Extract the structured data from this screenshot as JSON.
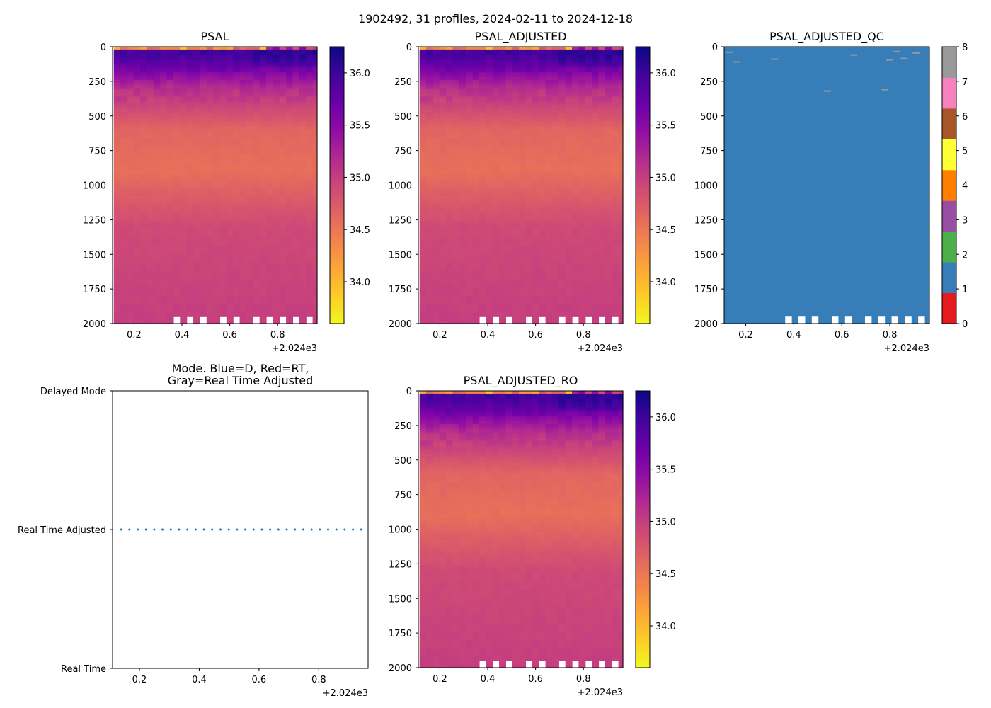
{
  "figure": {
    "suptitle": "1902492, 31 profiles, 2024-02-11 to 2024-12-18"
  },
  "chart_data": [
    {
      "id": "psal",
      "type": "heatmap",
      "title": "PSAL",
      "xlim": [
        0.11,
        0.965
      ],
      "xticks": [
        "0.2",
        "0.4",
        "0.6",
        "0.8"
      ],
      "xoffset": "+2.024e3",
      "ylim": [
        2000,
        0
      ],
      "yticks": [
        "0",
        "250",
        "500",
        "750",
        "1000",
        "1250",
        "1500",
        "1750",
        "2000"
      ],
      "colorbar": {
        "cmap": "plasma_r",
        "vmin": 33.6,
        "vmax": 36.25,
        "ticks": [
          "34.0",
          "34.5",
          "35.0",
          "35.5",
          "36.0"
        ]
      }
    },
    {
      "id": "psal_adj",
      "type": "heatmap",
      "title": "PSAL_ADJUSTED",
      "xlim": [
        0.11,
        0.965
      ],
      "xticks": [
        "0.2",
        "0.4",
        "0.6",
        "0.8"
      ],
      "xoffset": "+2.024e3",
      "ylim": [
        2000,
        0
      ],
      "yticks": [
        "0",
        "250",
        "500",
        "750",
        "1000",
        "1250",
        "1500",
        "1750",
        "2000"
      ],
      "colorbar": {
        "cmap": "plasma_r",
        "vmin": 33.6,
        "vmax": 36.25,
        "ticks": [
          "34.0",
          "34.5",
          "35.0",
          "35.5",
          "36.0"
        ]
      }
    },
    {
      "id": "psal_qc",
      "type": "heatmap",
      "title": "PSAL_ADJUSTED_QC",
      "xlim": [
        0.11,
        0.965
      ],
      "xticks": [
        "0.2",
        "0.4",
        "0.6",
        "0.8"
      ],
      "xoffset": "+2.024e3",
      "ylim": [
        2000,
        0
      ],
      "yticks": [
        "0",
        "250",
        "500",
        "750",
        "1000",
        "1250",
        "1500",
        "1750",
        "2000"
      ],
      "background_flag": 1,
      "flag_marks": [
        {
          "x": 0.13,
          "depth": 40,
          "flag": 8
        },
        {
          "x": 0.16,
          "depth": 110,
          "flag": 8
        },
        {
          "x": 0.32,
          "depth": 90,
          "flag": 8
        },
        {
          "x": 0.54,
          "depth": 320,
          "flag": 8
        },
        {
          "x": 0.65,
          "depth": 60,
          "flag": 8
        },
        {
          "x": 0.78,
          "depth": 310,
          "flag": 8
        },
        {
          "x": 0.8,
          "depth": 95,
          "flag": 8
        },
        {
          "x": 0.83,
          "depth": 35,
          "flag": 8
        },
        {
          "x": 0.86,
          "depth": 85,
          "flag": 8
        },
        {
          "x": 0.91,
          "depth": 45,
          "flag": 8
        }
      ],
      "colorbar": {
        "vmin": 0,
        "vmax": 8,
        "ticks": [
          "0",
          "1",
          "2",
          "3",
          "4",
          "5",
          "6",
          "7",
          "8"
        ],
        "colors": [
          "#e41a1c",
          "#377eb8",
          "#4daf4a",
          "#984ea3",
          "#ff7f00",
          "#ffff33",
          "#a65628",
          "#f781bf",
          "#999999"
        ]
      }
    },
    {
      "id": "mode",
      "type": "scatter",
      "title": "Mode. Blue=D, Red=RT,",
      "title2": "Gray=Real Time Adjusted",
      "xlim": [
        0.11,
        0.965
      ],
      "xticks": [
        "0.2",
        "0.4",
        "0.6",
        "0.8"
      ],
      "xoffset": "+2.024e3",
      "ycategories": [
        "Real Time",
        "Real Time Adjusted",
        "Delayed Mode"
      ],
      "y_value": "Real Time Adjusted",
      "point_color": "#1f77b4"
    },
    {
      "id": "psal_ro",
      "type": "heatmap",
      "title": "PSAL_ADJUSTED_RO",
      "xlim": [
        0.11,
        0.965
      ],
      "xticks": [
        "0.2",
        "0.4",
        "0.6",
        "0.8"
      ],
      "xoffset": "+2.024e3",
      "ylim": [
        2000,
        0
      ],
      "yticks": [
        "0",
        "250",
        "500",
        "750",
        "1000",
        "1250",
        "1500",
        "1750",
        "2000"
      ],
      "colorbar": {
        "cmap": "plasma_r",
        "vmin": 33.6,
        "vmax": 36.25,
        "ticks": [
          "34.0",
          "34.5",
          "35.0",
          "35.5",
          "36.0"
        ]
      }
    }
  ],
  "profiles": {
    "count": 31,
    "x_start": 0.115,
    "x_step": 0.0277,
    "short_profile_bottoms": [
      1950,
      1950,
      1950,
      1950,
      1950,
      1950,
      1950,
      1950,
      1950,
      1950
    ],
    "short_profile_indices": [
      9,
      11,
      13,
      16,
      18,
      21,
      23,
      25,
      27,
      29
    ]
  }
}
